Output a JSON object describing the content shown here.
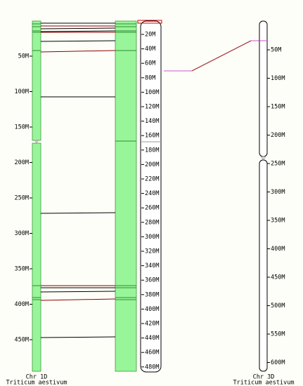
{
  "left_axis": {
    "ticks": [
      "50M",
      "100M",
      "150M",
      "200M",
      "250M",
      "300M",
      "350M",
      "400M",
      "450M"
    ]
  },
  "middle_axis": {
    "ticks": [
      "20M",
      "40M",
      "60M",
      "80M",
      "100M",
      "120M",
      "140M",
      "160M",
      "180M",
      "200M",
      "220M",
      "240M",
      "260M",
      "280M",
      "300M",
      "320M",
      "340M",
      "360M",
      "380M",
      "400M",
      "420M",
      "440M",
      "460M",
      "480M"
    ]
  },
  "right_axis": {
    "ticks": [
      "50M",
      "100M",
      "150M",
      "200M",
      "250M",
      "300M",
      "350M",
      "400M",
      "450M",
      "500M",
      "550M",
      "600M"
    ]
  },
  "left_label": {
    "chromosome": "Chr 1D",
    "species": "Triticum aestivum"
  },
  "right_label": {
    "chromosome": "Chr 3D",
    "species": "Triticum aestivum"
  }
}
